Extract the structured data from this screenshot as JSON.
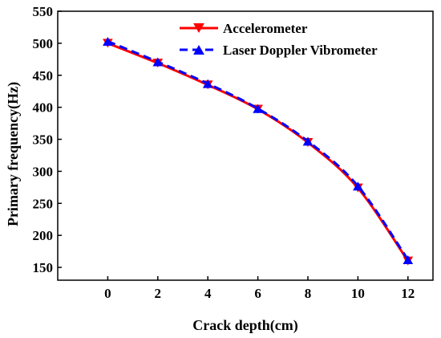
{
  "chart_data": {
    "type": "line",
    "title": "",
    "xlabel": "Crack depth(cm)",
    "ylabel": "Primary frequency(Hz)",
    "xlim": [
      -2,
      13
    ],
    "ylim": [
      130,
      550
    ],
    "xticks": [
      0,
      2,
      4,
      6,
      8,
      10,
      12
    ],
    "yticks": [
      150,
      200,
      250,
      300,
      350,
      400,
      450,
      500,
      550
    ],
    "grid": false,
    "legend_position": "top-right",
    "x": [
      0,
      2,
      4,
      6,
      8,
      10,
      12
    ],
    "series": [
      {
        "name": "Accelerometer",
        "values": [
          500,
          469,
          435,
          397,
          345,
          274,
          160
        ],
        "color": "#ff0000",
        "line_style": "solid",
        "marker": "triangle-down"
      },
      {
        "name": "Laser Doppler Vibrometer",
        "values": [
          503,
          471,
          437,
          398,
          347,
          277,
          162
        ],
        "color": "#0000ff",
        "line_style": "dashed",
        "marker": "triangle-up"
      }
    ]
  }
}
